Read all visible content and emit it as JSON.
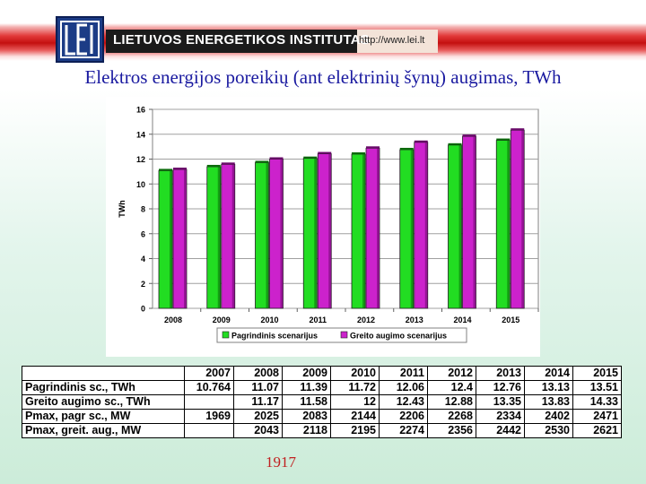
{
  "header": {
    "org_name": "LIETUVOS ENERGETIKOS INSTITUTAS",
    "url": "http://www.lei.lt"
  },
  "slide": {
    "title": "Elektros energijos poreikių (ant elektrinių šynų) augimas, TWh",
    "page_number": "1917"
  },
  "colors": {
    "series_primary": "#22dd22",
    "series_growth": "#cc22cc",
    "title": "#1a1aa0",
    "banner_red": "#c41010",
    "logo_blue": "#1c3c86"
  },
  "chart_data": {
    "type": "bar",
    "categories": [
      "2008",
      "2009",
      "2010",
      "2011",
      "2012",
      "2013",
      "2014",
      "2015"
    ],
    "series": [
      {
        "name": "Pagrindinis scenarijus",
        "values": [
          11.07,
          11.39,
          11.72,
          12.06,
          12.4,
          12.76,
          13.13,
          13.51
        ]
      },
      {
        "name": "Greito augimo scenarijus",
        "values": [
          11.17,
          11.58,
          12,
          12.43,
          12.88,
          13.35,
          13.83,
          14.33
        ]
      }
    ],
    "ylabel": "TWh",
    "ylim": [
      0,
      16
    ],
    "yticks": [
      0,
      2,
      4,
      6,
      8,
      10,
      12,
      14,
      16
    ],
    "grid": true,
    "legend_position": "bottom"
  },
  "table": {
    "columns": [
      "",
      "2007",
      "2008",
      "2009",
      "2010",
      "2011",
      "2012",
      "2013",
      "2014",
      "2015"
    ],
    "rows": [
      [
        "Pagrindinis sc., TWh",
        "10.764",
        "11.07",
        "11.39",
        "11.72",
        "12.06",
        "12.4",
        "12.76",
        "13.13",
        "13.51"
      ],
      [
        "Greito augimo sc., TWh",
        "",
        "11.17",
        "11.58",
        "12",
        "12.43",
        "12.88",
        "13.35",
        "13.83",
        "14.33"
      ],
      [
        "Pmax, pagr sc., MW",
        "1969",
        "2025",
        "2083",
        "2144",
        "2206",
        "2268",
        "2334",
        "2402",
        "2471"
      ],
      [
        "Pmax, greit. aug., MW",
        "",
        "2043",
        "2118",
        "2195",
        "2274",
        "2356",
        "2442",
        "2530",
        "2621"
      ]
    ]
  }
}
